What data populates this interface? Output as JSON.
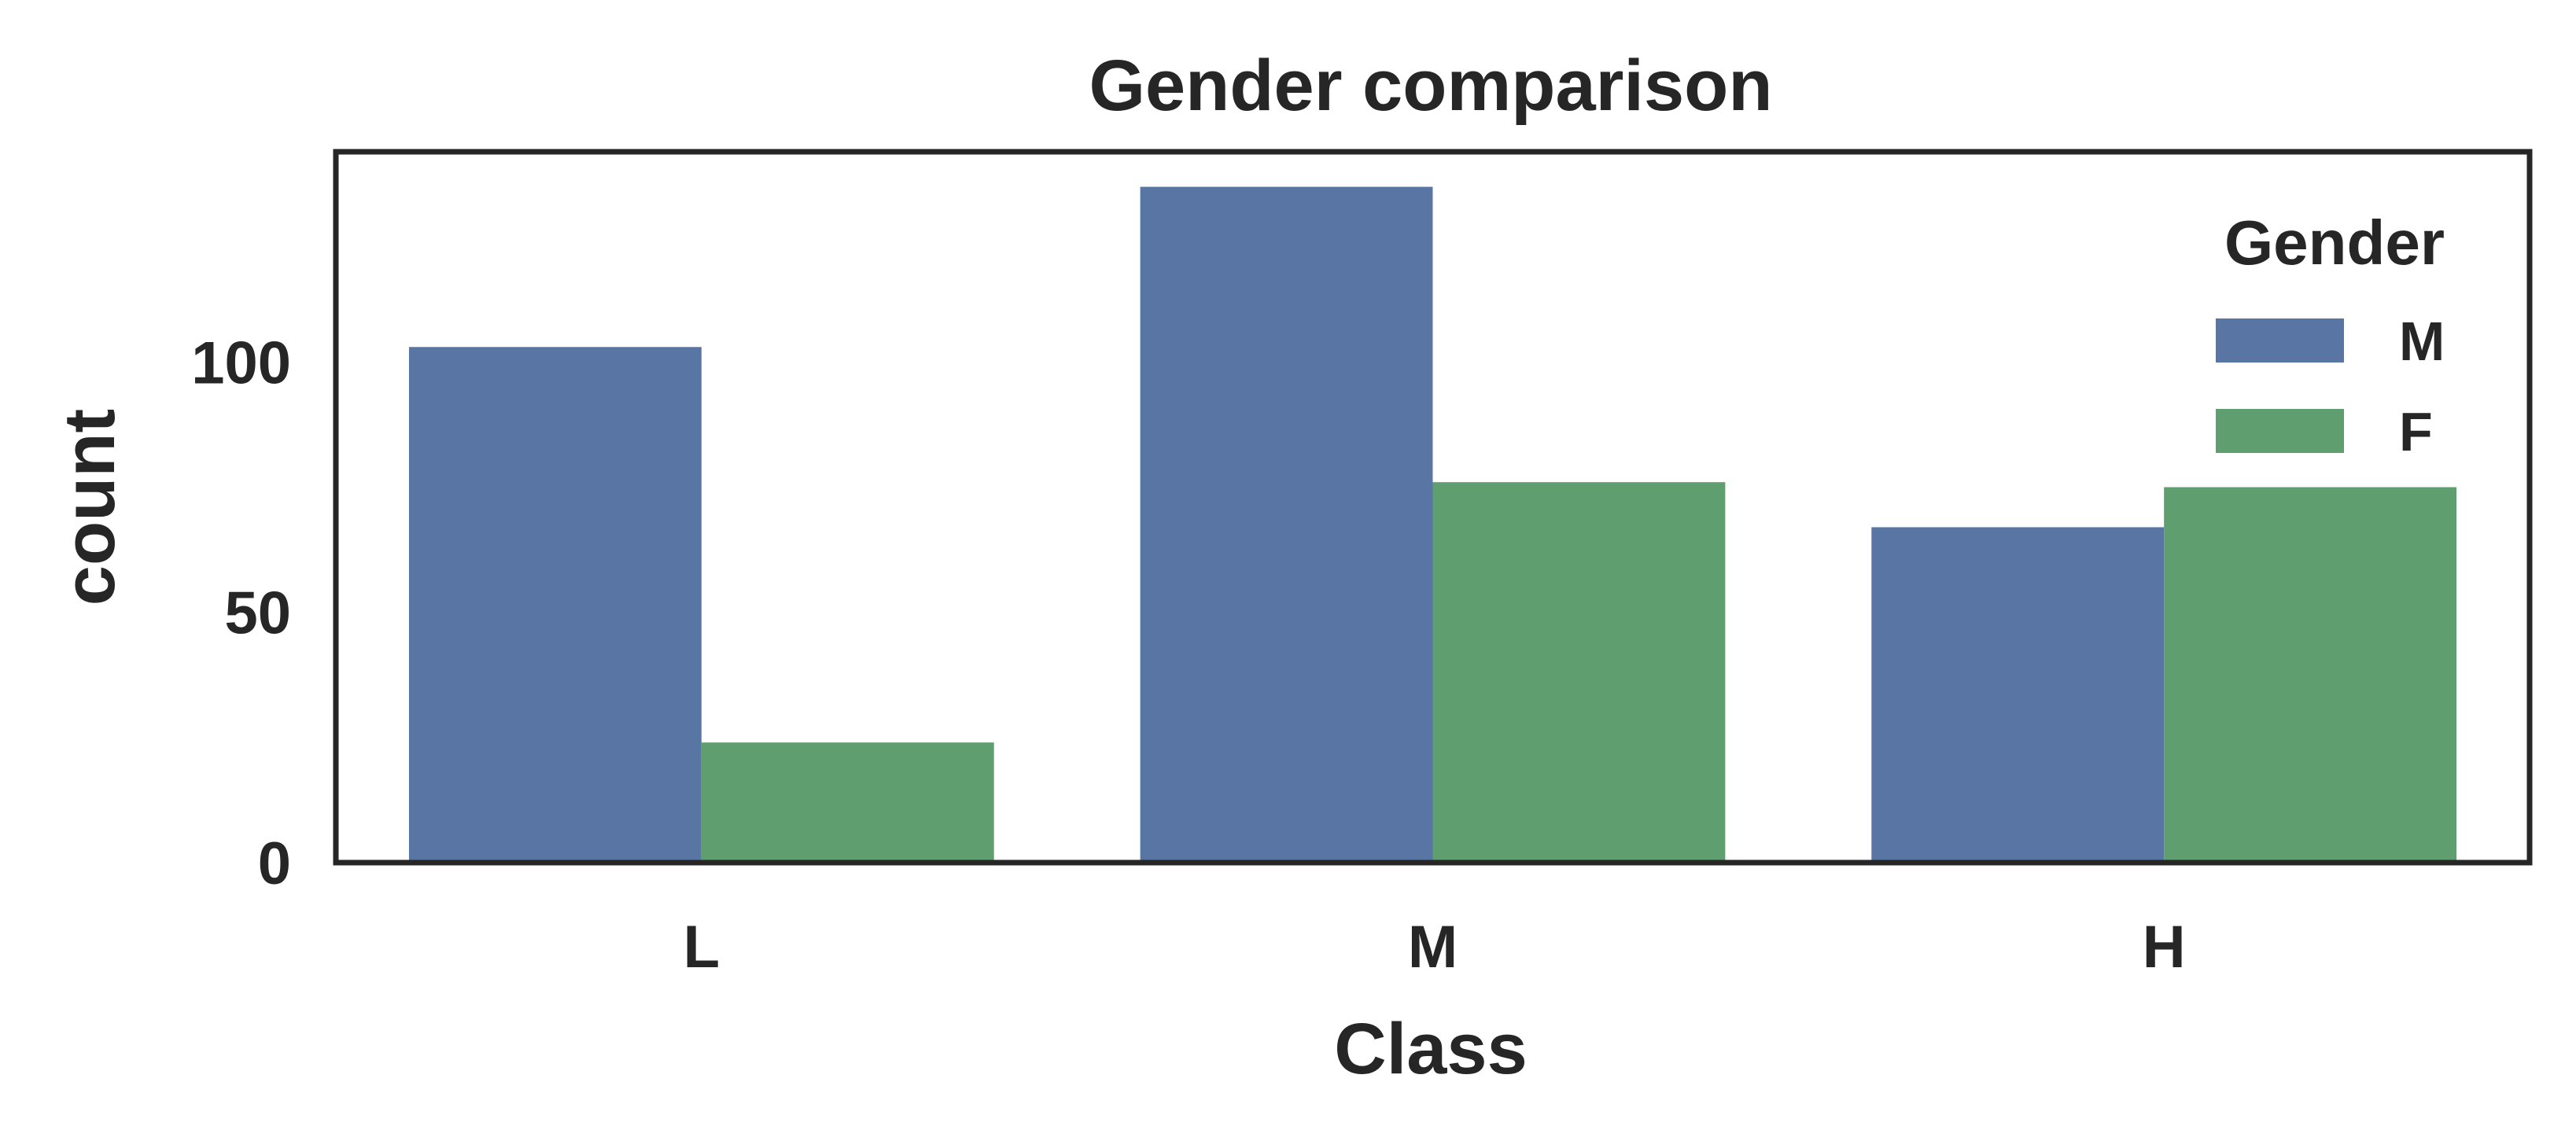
{
  "chart_data": {
    "type": "bar",
    "title": "Gender comparison",
    "xlabel": "Class",
    "ylabel": "count",
    "categories": [
      "L",
      "M",
      "H"
    ],
    "series": [
      {
        "name": "M",
        "values": [
          103,
          135,
          67
        ],
        "color": "#5875a4"
      },
      {
        "name": "F",
        "values": [
          24,
          76,
          75
        ],
        "color": "#5f9e6e"
      }
    ],
    "yticks": [
      0,
      50,
      100
    ],
    "ylim": [
      0,
      142
    ],
    "grid": false,
    "legend": {
      "title": "Gender",
      "placement": "top-right"
    }
  }
}
